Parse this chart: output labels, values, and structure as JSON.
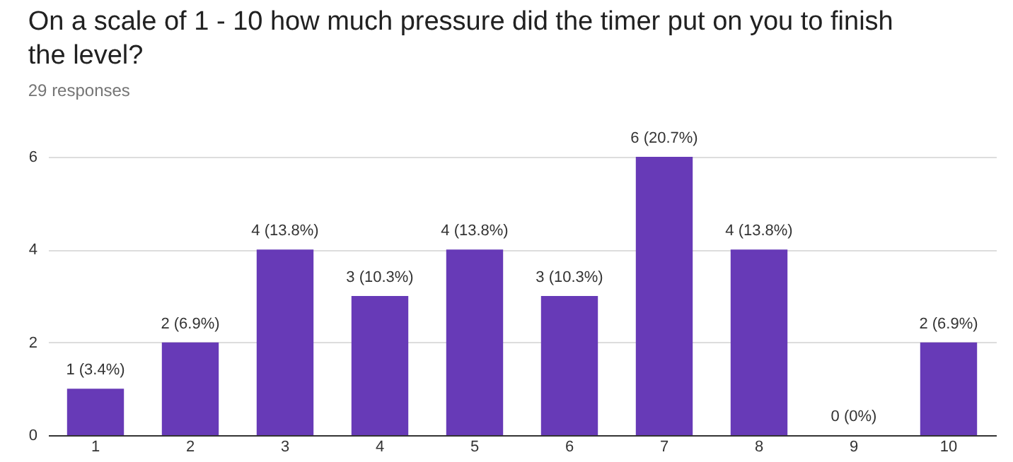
{
  "chart_data": {
    "type": "bar",
    "title": "On a scale of 1 - 10 how much pressure did the timer put on you to finish the level?",
    "subtitle": "29 responses",
    "categories": [
      "1",
      "2",
      "3",
      "4",
      "5",
      "6",
      "7",
      "8",
      "9",
      "10"
    ],
    "values": [
      1,
      2,
      4,
      3,
      4,
      3,
      6,
      4,
      0,
      2
    ],
    "value_labels": [
      "1 (3.4%)",
      "2 (6.9%)",
      "4 (13.8%)",
      "3 (10.3%)",
      "4 (13.8%)",
      "3 (10.3%)",
      "6 (20.7%)",
      "4 (13.8%)",
      "0 (0%)",
      "2 (6.9%)"
    ],
    "color": "#673ab7",
    "ylim": [
      0,
      6
    ],
    "yticks": [
      0,
      2,
      4,
      6
    ],
    "grid": "y"
  }
}
